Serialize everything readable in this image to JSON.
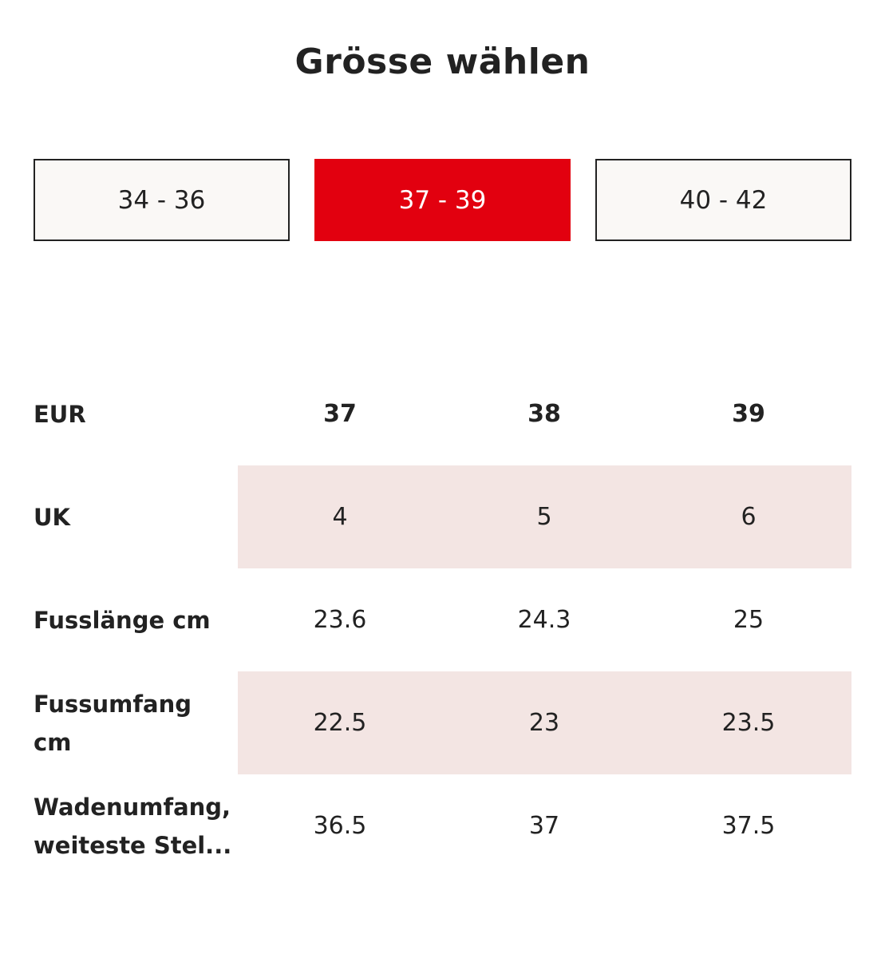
{
  "title": "Grösse wählen",
  "size_ranges": {
    "options": [
      "34 - 36",
      "37 - 39",
      "40 - 42"
    ],
    "selected": "37 - 39"
  },
  "accent_color": "#e2000f",
  "row_shade_color": "#f3e5e3",
  "table": {
    "rows": [
      {
        "label": "EUR",
        "values": [
          "37",
          "38",
          "39"
        ]
      },
      {
        "label": "UK",
        "values": [
          "4",
          "5",
          "6"
        ]
      },
      {
        "label": "Fusslänge cm",
        "values": [
          "23.6",
          "24.3",
          "25"
        ]
      },
      {
        "label": "Fussumfang cm",
        "values": [
          "22.5",
          "23",
          "23.5"
        ]
      },
      {
        "label": "Wadenumfang, weiteste Stel...",
        "values": [
          "36.5",
          "37",
          "37.5"
        ]
      }
    ]
  }
}
